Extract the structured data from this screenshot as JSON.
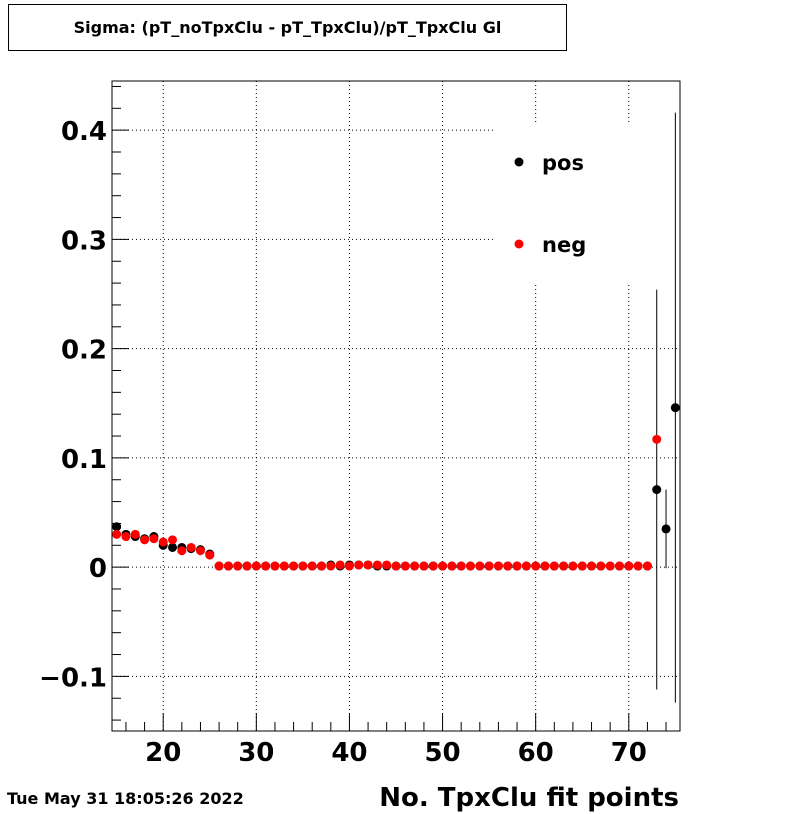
{
  "title": "Sigma: (pT_noTpxClu - pT_TpxClu)/pT_TpxClu Gl",
  "timestamp": "Tue May 31 18:05:26 2022",
  "chart_data": {
    "type": "scatter",
    "title": "Sigma: (pT_noTpxClu - pT_TpxClu)/pT_TpxClu Gl",
    "xlabel": "No. TpxClu fit points",
    "ylabel": "",
    "xlim": [
      14.5,
      75.5
    ],
    "ylim": [
      -0.15,
      0.445
    ],
    "grid": true,
    "legend_position": "top-right",
    "x_ticks": [
      20,
      30,
      40,
      50,
      60,
      70
    ],
    "x_tick_labels": [
      "20",
      "30",
      "40",
      "50",
      "60",
      "70"
    ],
    "y_ticks": [
      -0.1,
      0,
      0.1,
      0.2,
      0.3,
      0.4
    ],
    "y_tick_labels": [
      "−0.1",
      "0",
      "0.1",
      "0.2",
      "0.3",
      "0.4"
    ],
    "series": [
      {
        "name": "pos",
        "color": "#000000",
        "points": [
          {
            "x": 15,
            "y": 0.037
          },
          {
            "x": 16,
            "y": 0.03
          },
          {
            "x": 17,
            "y": 0.028
          },
          {
            "x": 18,
            "y": 0.026
          },
          {
            "x": 19,
            "y": 0.028
          },
          {
            "x": 20,
            "y": 0.02
          },
          {
            "x": 21,
            "y": 0.018
          },
          {
            "x": 22,
            "y": 0.018
          },
          {
            "x": 23,
            "y": 0.017
          },
          {
            "x": 24,
            "y": 0.016
          },
          {
            "x": 25,
            "y": 0.012
          },
          {
            "x": 26,
            "y": 0.001
          },
          {
            "x": 27,
            "y": 0.001
          },
          {
            "x": 28,
            "y": 0.001
          },
          {
            "x": 29,
            "y": 0.001
          },
          {
            "x": 30,
            "y": 0.001
          },
          {
            "x": 31,
            "y": 0.001
          },
          {
            "x": 32,
            "y": 0.001
          },
          {
            "x": 33,
            "y": 0.001
          },
          {
            "x": 34,
            "y": 0.001
          },
          {
            "x": 35,
            "y": 0.001
          },
          {
            "x": 36,
            "y": 0.001
          },
          {
            "x": 37,
            "y": 0.001
          },
          {
            "x": 38,
            "y": 0.002
          },
          {
            "x": 39,
            "y": 0.001
          },
          {
            "x": 40,
            "y": 0.002
          },
          {
            "x": 41,
            "y": 0.002
          },
          {
            "x": 42,
            "y": 0.002
          },
          {
            "x": 43,
            "y": 0.001
          },
          {
            "x": 44,
            "y": 0.001
          },
          {
            "x": 45,
            "y": 0.001
          },
          {
            "x": 46,
            "y": 0.001
          },
          {
            "x": 47,
            "y": 0.001
          },
          {
            "x": 48,
            "y": 0.001
          },
          {
            "x": 49,
            "y": 0.001
          },
          {
            "x": 50,
            "y": 0.001
          },
          {
            "x": 51,
            "y": 0.001
          },
          {
            "x": 52,
            "y": 0.001
          },
          {
            "x": 53,
            "y": 0.001
          },
          {
            "x": 54,
            "y": 0.001
          },
          {
            "x": 55,
            "y": 0.001
          },
          {
            "x": 56,
            "y": 0.001
          },
          {
            "x": 57,
            "y": 0.001
          },
          {
            "x": 58,
            "y": 0.001
          },
          {
            "x": 59,
            "y": 0.001
          },
          {
            "x": 60,
            "y": 0.001
          },
          {
            "x": 61,
            "y": 0.001
          },
          {
            "x": 62,
            "y": 0.001
          },
          {
            "x": 63,
            "y": 0.001
          },
          {
            "x": 64,
            "y": 0.001
          },
          {
            "x": 65,
            "y": 0.001
          },
          {
            "x": 66,
            "y": 0.001
          },
          {
            "x": 67,
            "y": 0.001
          },
          {
            "x": 68,
            "y": 0.001
          },
          {
            "x": 69,
            "y": 0.001
          },
          {
            "x": 70,
            "y": 0.001
          },
          {
            "x": 71,
            "y": 0.001
          },
          {
            "x": 72,
            "y": 0.001
          },
          {
            "x": 73,
            "y": 0.071,
            "err": 0.183
          },
          {
            "x": 74,
            "y": 0.035,
            "err": 0.036
          },
          {
            "x": 75,
            "y": 0.146,
            "err": 0.27
          }
        ]
      },
      {
        "name": "neg",
        "color": "#ff0000",
        "points": [
          {
            "x": 15,
            "y": 0.03
          },
          {
            "x": 16,
            "y": 0.028
          },
          {
            "x": 17,
            "y": 0.03
          },
          {
            "x": 18,
            "y": 0.025
          },
          {
            "x": 19,
            "y": 0.026
          },
          {
            "x": 20,
            "y": 0.023
          },
          {
            "x": 21,
            "y": 0.025
          },
          {
            "x": 22,
            "y": 0.015
          },
          {
            "x": 23,
            "y": 0.018
          },
          {
            "x": 24,
            "y": 0.015
          },
          {
            "x": 25,
            "y": 0.011
          },
          {
            "x": 26,
            "y": 0.001
          },
          {
            "x": 27,
            "y": 0.001
          },
          {
            "x": 28,
            "y": 0.001
          },
          {
            "x": 29,
            "y": 0.001
          },
          {
            "x": 30,
            "y": 0.001
          },
          {
            "x": 31,
            "y": 0.001
          },
          {
            "x": 32,
            "y": 0.001
          },
          {
            "x": 33,
            "y": 0.001
          },
          {
            "x": 34,
            "y": 0.001
          },
          {
            "x": 35,
            "y": 0.001
          },
          {
            "x": 36,
            "y": 0.001
          },
          {
            "x": 37,
            "y": 0.001
          },
          {
            "x": 38,
            "y": 0.001
          },
          {
            "x": 39,
            "y": 0.002
          },
          {
            "x": 40,
            "y": 0.001
          },
          {
            "x": 41,
            "y": 0.002
          },
          {
            "x": 42,
            "y": 0.002
          },
          {
            "x": 43,
            "y": 0.002
          },
          {
            "x": 44,
            "y": 0.002
          },
          {
            "x": 45,
            "y": 0.001
          },
          {
            "x": 46,
            "y": 0.001
          },
          {
            "x": 47,
            "y": 0.001
          },
          {
            "x": 48,
            "y": 0.001
          },
          {
            "x": 49,
            "y": 0.001
          },
          {
            "x": 50,
            "y": 0.001
          },
          {
            "x": 51,
            "y": 0.001
          },
          {
            "x": 52,
            "y": 0.001
          },
          {
            "x": 53,
            "y": 0.001
          },
          {
            "x": 54,
            "y": 0.001
          },
          {
            "x": 55,
            "y": 0.001
          },
          {
            "x": 56,
            "y": 0.001
          },
          {
            "x": 57,
            "y": 0.001
          },
          {
            "x": 58,
            "y": 0.001
          },
          {
            "x": 59,
            "y": 0.001
          },
          {
            "x": 60,
            "y": 0.001
          },
          {
            "x": 61,
            "y": 0.001
          },
          {
            "x": 62,
            "y": 0.001
          },
          {
            "x": 63,
            "y": 0.001
          },
          {
            "x": 64,
            "y": 0.001
          },
          {
            "x": 65,
            "y": 0.001
          },
          {
            "x": 66,
            "y": 0.001
          },
          {
            "x": 67,
            "y": 0.001
          },
          {
            "x": 68,
            "y": 0.001
          },
          {
            "x": 69,
            "y": 0.001
          },
          {
            "x": 70,
            "y": 0.001
          },
          {
            "x": 71,
            "y": 0.001
          },
          {
            "x": 72,
            "y": 0.001
          },
          {
            "x": 73,
            "y": 0.117
          }
        ]
      }
    ]
  }
}
